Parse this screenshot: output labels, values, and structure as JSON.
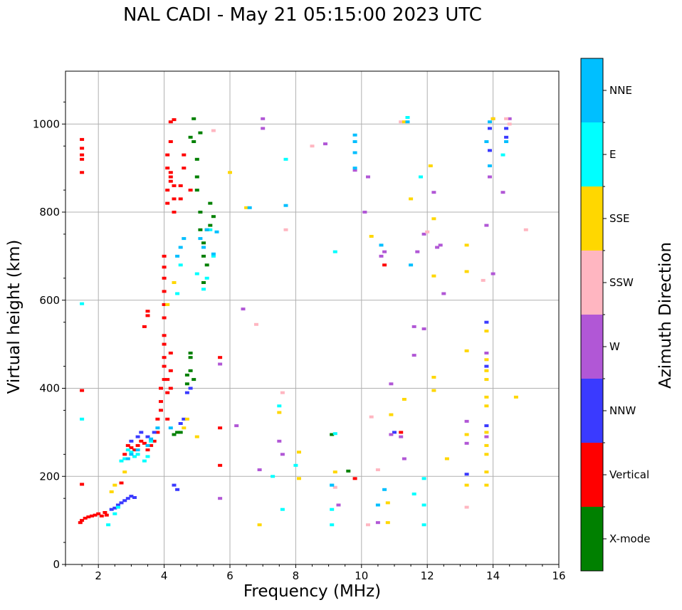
{
  "chart_data": {
    "type": "scatter",
    "title": "NAL CADI - May 21 05:15:00 2023 UTC",
    "xlabel": "Frequency (MHz)",
    "ylabel": "Virtual height (km)",
    "xlim": [
      1,
      16
    ],
    "ylim": [
      0,
      1120
    ],
    "xticks": [
      2,
      4,
      6,
      8,
      10,
      12,
      14,
      16
    ],
    "yticks": [
      0,
      200,
      400,
      600,
      800,
      1000
    ],
    "grid": true,
    "colorbar": {
      "label": "Azimuth Direction",
      "categories": [
        {
          "name": "X-mode",
          "color": "#008000"
        },
        {
          "name": "Vertical",
          "color": "#ff0000"
        },
        {
          "name": "NNW",
          "color": "#3a3aff"
        },
        {
          "name": "W",
          "color": "#b157d6"
        },
        {
          "name": "SSW",
          "color": "#ffb6c1"
        },
        {
          "name": "SSE",
          "color": "#ffd700"
        },
        {
          "name": "E",
          "color": "#00ffff"
        },
        {
          "name": "NNE",
          "color": "#00bfff"
        }
      ]
    },
    "series": [
      {
        "name": "Vertical",
        "points": [
          [
            1.45,
            95
          ],
          [
            1.5,
            100
          ],
          [
            1.6,
            105
          ],
          [
            1.7,
            108
          ],
          [
            1.8,
            110
          ],
          [
            1.9,
            112
          ],
          [
            2.0,
            115
          ],
          [
            2.1,
            110
          ],
          [
            2.2,
            118
          ],
          [
            2.25,
            112
          ],
          [
            1.5,
            182
          ],
          [
            1.5,
            395
          ],
          [
            1.5,
            890
          ],
          [
            1.5,
            920
          ],
          [
            1.5,
            930
          ],
          [
            1.5,
            945
          ],
          [
            1.5,
            965
          ],
          [
            2.7,
            185
          ],
          [
            2.8,
            250
          ],
          [
            2.9,
            270
          ],
          [
            3.0,
            265
          ],
          [
            3.1,
            260
          ],
          [
            3.2,
            270
          ],
          [
            3.3,
            280
          ],
          [
            3.4,
            275
          ],
          [
            3.5,
            260
          ],
          [
            3.6,
            270
          ],
          [
            3.7,
            280
          ],
          [
            3.4,
            540
          ],
          [
            3.5,
            565
          ],
          [
            3.5,
            575
          ],
          [
            3.8,
            300
          ],
          [
            3.8,
            330
          ],
          [
            3.9,
            350
          ],
          [
            3.9,
            370
          ],
          [
            3.9,
            400
          ],
          [
            4.0,
            420
          ],
          [
            4.0,
            450
          ],
          [
            4.0,
            470
          ],
          [
            4.0,
            500
          ],
          [
            4.0,
            520
          ],
          [
            4.0,
            560
          ],
          [
            4.0,
            590
          ],
          [
            4.0,
            620
          ],
          [
            4.0,
            650
          ],
          [
            4.0,
            675
          ],
          [
            4.0,
            700
          ],
          [
            4.1,
            330
          ],
          [
            4.1,
            390
          ],
          [
            4.1,
            420
          ],
          [
            4.2,
            400
          ],
          [
            4.2,
            440
          ],
          [
            4.2,
            480
          ],
          [
            4.1,
            820
          ],
          [
            4.1,
            850
          ],
          [
            4.2,
            870
          ],
          [
            4.2,
            890
          ],
          [
            4.1,
            930
          ],
          [
            4.2,
            960
          ],
          [
            4.2,
            1005
          ],
          [
            4.3,
            800
          ],
          [
            4.3,
            830
          ],
          [
            4.3,
            860
          ],
          [
            4.3,
            1010
          ],
          [
            4.5,
            860
          ],
          [
            4.5,
            830
          ],
          [
            4.6,
            900
          ],
          [
            4.6,
            930
          ],
          [
            4.8,
            850
          ],
          [
            4.1,
            900
          ],
          [
            4.2,
            880
          ],
          [
            5.7,
            225
          ],
          [
            5.7,
            310
          ],
          [
            5.7,
            470
          ],
          [
            9.8,
            195
          ],
          [
            10.7,
            680
          ],
          [
            11.2,
            300
          ]
        ]
      },
      {
        "name": "X-mode",
        "points": [
          [
            4.3,
            295
          ],
          [
            4.4,
            300
          ],
          [
            4.5,
            300
          ],
          [
            4.7,
            430
          ],
          [
            4.7,
            410
          ],
          [
            4.8,
            440
          ],
          [
            4.8,
            470
          ],
          [
            4.8,
            480
          ],
          [
            4.9,
            420
          ],
          [
            4.8,
            970
          ],
          [
            4.9,
            1012
          ],
          [
            4.9,
            960
          ],
          [
            5.0,
            920
          ],
          [
            5.0,
            850
          ],
          [
            5.1,
            800
          ],
          [
            5.1,
            760
          ],
          [
            5.2,
            730
          ],
          [
            5.2,
            700
          ],
          [
            5.3,
            680
          ],
          [
            5.4,
            770
          ],
          [
            5.5,
            790
          ],
          [
            5.3,
            760
          ],
          [
            5.2,
            640
          ],
          [
            5.4,
            820
          ],
          [
            5.1,
            980
          ],
          [
            5.0,
            880
          ],
          [
            9.1,
            295
          ],
          [
            9.6,
            212
          ]
        ]
      },
      {
        "name": "NNW",
        "points": [
          [
            2.4,
            125
          ],
          [
            2.5,
            128
          ],
          [
            2.6,
            135
          ],
          [
            2.7,
            140
          ],
          [
            2.8,
            145
          ],
          [
            2.9,
            150
          ],
          [
            3.0,
            155
          ],
          [
            3.1,
            152
          ],
          [
            3.0,
            280
          ],
          [
            3.2,
            290
          ],
          [
            3.3,
            300
          ],
          [
            3.5,
            290
          ],
          [
            3.7,
            300
          ],
          [
            4.3,
            180
          ],
          [
            4.4,
            170
          ],
          [
            4.5,
            320
          ],
          [
            4.6,
            330
          ],
          [
            4.7,
            390
          ],
          [
            4.8,
            400
          ],
          [
            13.2,
            205
          ],
          [
            13.8,
            315
          ],
          [
            13.8,
            450
          ],
          [
            13.8,
            550
          ],
          [
            13.9,
            990
          ],
          [
            13.9,
            940
          ],
          [
            14.4,
            990
          ],
          [
            14.4,
            970
          ],
          [
            11.0,
            300
          ]
        ]
      },
      {
        "name": "W",
        "points": [
          [
            5.7,
            150
          ],
          [
            5.7,
            455
          ],
          [
            6.2,
            315
          ],
          [
            6.4,
            580
          ],
          [
            6.9,
            215
          ],
          [
            7.0,
            1012
          ],
          [
            7.0,
            990
          ],
          [
            7.5,
            280
          ],
          [
            7.6,
            250
          ],
          [
            8.9,
            955
          ],
          [
            9.3,
            135
          ],
          [
            9.8,
            895
          ],
          [
            10.2,
            880
          ],
          [
            10.5,
            95
          ],
          [
            10.6,
            700
          ],
          [
            10.7,
            710
          ],
          [
            10.9,
            410
          ],
          [
            10.9,
            295
          ],
          [
            11.2,
            290
          ],
          [
            11.3,
            240
          ],
          [
            11.6,
            475
          ],
          [
            11.6,
            540
          ],
          [
            11.7,
            710
          ],
          [
            11.9,
            750
          ],
          [
            11.9,
            535
          ],
          [
            12.2,
            845
          ],
          [
            12.3,
            720
          ],
          [
            12.4,
            725
          ],
          [
            12.5,
            615
          ],
          [
            13.2,
            275
          ],
          [
            13.2,
            325
          ],
          [
            13.8,
            290
          ],
          [
            13.8,
            480
          ],
          [
            13.8,
            770
          ],
          [
            13.9,
            880
          ],
          [
            14.0,
            660
          ],
          [
            14.3,
            845
          ],
          [
            14.0,
            1012
          ],
          [
            14.5,
            1012
          ],
          [
            10.1,
            800
          ]
        ]
      },
      {
        "name": "SSW",
        "points": [
          [
            5.5,
            985
          ],
          [
            6.8,
            545
          ],
          [
            7.6,
            390
          ],
          [
            7.7,
            760
          ],
          [
            8.5,
            950
          ],
          [
            9.2,
            175
          ],
          [
            10.2,
            90
          ],
          [
            10.3,
            335
          ],
          [
            11.2,
            1005
          ],
          [
            12.0,
            755
          ],
          [
            13.2,
            130
          ],
          [
            13.7,
            645
          ],
          [
            14.4,
            1012
          ],
          [
            14.5,
            1000
          ],
          [
            15.0,
            760
          ],
          [
            10.5,
            215
          ]
        ]
      },
      {
        "name": "SSE",
        "points": [
          [
            2.4,
            165
          ],
          [
            2.5,
            180
          ],
          [
            2.8,
            210
          ],
          [
            4.1,
            590
          ],
          [
            4.3,
            640
          ],
          [
            4.6,
            310
          ],
          [
            4.7,
            330
          ],
          [
            5.0,
            290
          ],
          [
            6.0,
            890
          ],
          [
            6.5,
            810
          ],
          [
            6.9,
            90
          ],
          [
            7.5,
            345
          ],
          [
            8.1,
            255
          ],
          [
            8.1,
            195
          ],
          [
            9.2,
            210
          ],
          [
            10.3,
            745
          ],
          [
            10.8,
            95
          ],
          [
            10.8,
            140
          ],
          [
            10.9,
            340
          ],
          [
            11.3,
            375
          ],
          [
            11.5,
            830
          ],
          [
            12.1,
            905
          ],
          [
            12.2,
            425
          ],
          [
            12.2,
            395
          ],
          [
            12.2,
            785
          ],
          [
            12.2,
            655
          ],
          [
            12.6,
            240
          ],
          [
            13.2,
            180
          ],
          [
            13.2,
            295
          ],
          [
            13.2,
            485
          ],
          [
            13.2,
            665
          ],
          [
            13.2,
            725
          ],
          [
            13.8,
            180
          ],
          [
            13.8,
            210
          ],
          [
            13.8,
            250
          ],
          [
            13.8,
            270
          ],
          [
            13.8,
            300
          ],
          [
            13.8,
            360
          ],
          [
            13.8,
            380
          ],
          [
            13.8,
            420
          ],
          [
            13.8,
            440
          ],
          [
            13.8,
            465
          ],
          [
            13.8,
            530
          ],
          [
            14.0,
            1012
          ],
          [
            14.7,
            380
          ],
          [
            11.3,
            1005
          ]
        ]
      },
      {
        "name": "E",
        "points": [
          [
            1.5,
            592
          ],
          [
            1.5,
            330
          ],
          [
            2.3,
            90
          ],
          [
            2.5,
            115
          ],
          [
            2.6,
            130
          ],
          [
            2.7,
            235
          ],
          [
            2.8,
            240
          ],
          [
            2.9,
            260
          ],
          [
            3.0,
            255
          ],
          [
            3.1,
            245
          ],
          [
            3.2,
            250
          ],
          [
            3.4,
            235
          ],
          [
            3.5,
            245
          ],
          [
            3.6,
            280
          ],
          [
            4.4,
            615
          ],
          [
            4.5,
            680
          ],
          [
            5.0,
            660
          ],
          [
            5.2,
            625
          ],
          [
            5.3,
            650
          ],
          [
            5.5,
            700
          ],
          [
            5.4,
            760
          ],
          [
            7.3,
            200
          ],
          [
            7.5,
            360
          ],
          [
            7.6,
            125
          ],
          [
            7.7,
            920
          ],
          [
            8.0,
            225
          ],
          [
            9.1,
            90
          ],
          [
            9.1,
            125
          ],
          [
            9.1,
            180
          ],
          [
            9.2,
            297
          ],
          [
            9.2,
            710
          ],
          [
            11.6,
            160
          ],
          [
            11.8,
            880
          ],
          [
            11.9,
            90
          ],
          [
            11.9,
            135
          ],
          [
            11.9,
            195
          ],
          [
            11.4,
            1015
          ],
          [
            14.3,
            930
          ]
        ]
      },
      {
        "name": "NNE",
        "points": [
          [
            2.9,
            240
          ],
          [
            3.0,
            250
          ],
          [
            3.2,
            260
          ],
          [
            3.5,
            270
          ],
          [
            3.6,
            285
          ],
          [
            3.8,
            310
          ],
          [
            4.2,
            310
          ],
          [
            4.4,
            700
          ],
          [
            4.5,
            720
          ],
          [
            4.6,
            740
          ],
          [
            5.1,
            740
          ],
          [
            5.2,
            720
          ],
          [
            5.3,
            760
          ],
          [
            5.5,
            705
          ],
          [
            5.6,
            755
          ],
          [
            6.6,
            810
          ],
          [
            7.7,
            815
          ],
          [
            9.1,
            180
          ],
          [
            9.8,
            900
          ],
          [
            9.8,
            935
          ],
          [
            9.8,
            960
          ],
          [
            9.8,
            975
          ],
          [
            10.5,
            135
          ],
          [
            10.7,
            170
          ],
          [
            10.6,
            725
          ],
          [
            11.5,
            680
          ],
          [
            11.4,
            1005
          ],
          [
            13.8,
            960
          ],
          [
            13.9,
            1005
          ],
          [
            13.9,
            905
          ],
          [
            14.4,
            960
          ]
        ]
      }
    ]
  }
}
